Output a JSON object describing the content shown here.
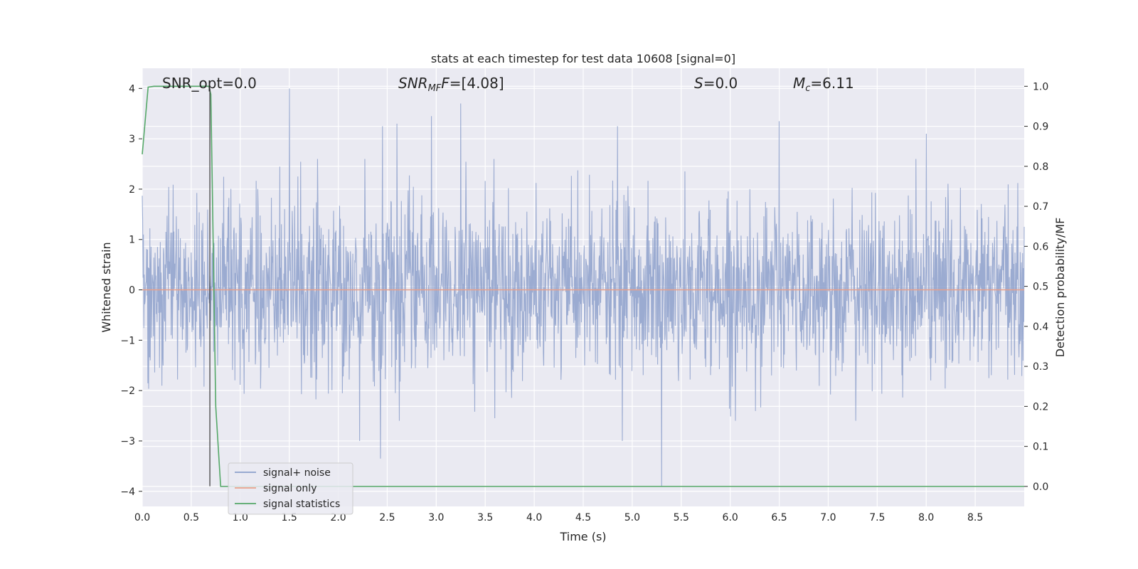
{
  "chart_data": {
    "type": "line",
    "title": "stats at each timestep for test data 10608 [signal=0]",
    "xlabel": "Time (s)",
    "ylabel": "Whitened strain",
    "y2label": "Detection probability/MF",
    "xlim": [
      0.0,
      9.0
    ],
    "ylim": [
      -4.3,
      4.4
    ],
    "y2lim": [
      -0.05,
      1.045
    ],
    "xticks": [
      "0.0",
      "0.5",
      "1.0",
      "1.5",
      "2.0",
      "2.5",
      "3.0",
      "3.5",
      "4.0",
      "4.5",
      "5.0",
      "5.5",
      "6.0",
      "6.5",
      "7.0",
      "7.5",
      "8.0",
      "8.5"
    ],
    "yticks": [
      "−4",
      "−3",
      "−2",
      "−1",
      "0",
      "1",
      "2",
      "3",
      "4"
    ],
    "y2ticks": [
      "0.0",
      "0.1",
      "0.2",
      "0.3",
      "0.4",
      "0.5",
      "0.6",
      "0.7",
      "0.8",
      "0.9",
      "1.0"
    ],
    "grid": true,
    "legend_position": "lower-left",
    "annotations": {
      "snr_opt": "SNR_opt=0.0",
      "snr_mf_main": "SNR",
      "snr_mf_sub": "MF",
      "snr_mf_value": "=[4.08]",
      "s_main": "S",
      "s_value": "=0.0",
      "mc_main": "M",
      "mc_sub": "c",
      "mc_value": "=6.11"
    },
    "series": [
      {
        "name": "signal+ noise",
        "color": "#8da0cb",
        "description_noise_amplitude_std": 0.85,
        "peaks": [
          {
            "x": 1.5,
            "y": 4.0
          },
          {
            "x": 3.25,
            "y": 3.7
          },
          {
            "x": 2.95,
            "y": 3.45
          },
          {
            "x": 6.5,
            "y": 3.35
          },
          {
            "x": 2.6,
            "y": 3.3
          },
          {
            "x": 2.45,
            "y": 3.25
          },
          {
            "x": 4.85,
            "y": 3.25
          },
          {
            "x": 8.0,
            "y": 3.1
          },
          {
            "x": 5.3,
            "y": -3.9
          },
          {
            "x": 2.43,
            "y": -3.35
          },
          {
            "x": 2.22,
            "y": -3.0
          },
          {
            "x": 4.9,
            "y": -3.0
          }
        ]
      },
      {
        "name": "signal only",
        "color": "#e8a08a",
        "value": 0.0
      },
      {
        "name": "signal statistics",
        "color": "#55a868",
        "x": [
          0.0,
          0.06,
          0.12,
          0.2,
          0.5,
          0.68,
          0.7,
          0.75,
          0.8,
          0.88,
          9.0
        ],
        "y": [
          0.83,
          0.998,
          1.0,
          1.0,
          1.0,
          1.0,
          0.98,
          0.2,
          0.0,
          0.0,
          0.0
        ]
      }
    ],
    "vertical_marker": {
      "x": 0.69,
      "y_from": -3.9,
      "y_to": 4.0,
      "color": "#444444"
    }
  }
}
